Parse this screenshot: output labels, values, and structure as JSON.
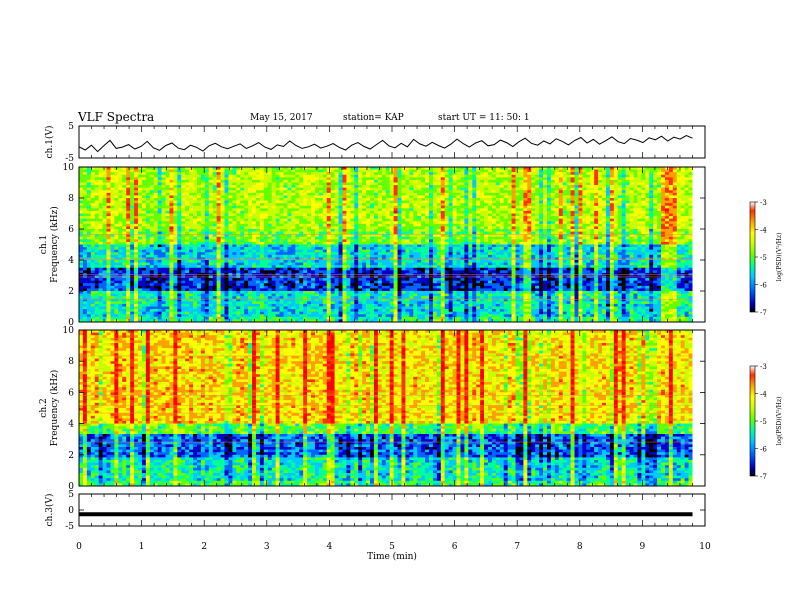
{
  "header": {
    "title": "VLF Spectra",
    "date": "May 15, 2017",
    "station": "station= KAP",
    "start": "start UT = 11: 50: 1"
  },
  "chart_data": [
    {
      "panel": "ch1-waveform",
      "type": "line",
      "ylabel": "ch.1(V)",
      "ylim": [
        -5,
        5
      ],
      "yticks": [
        "5",
        "-5"
      ],
      "xlim": [
        0,
        9.8
      ],
      "series": [
        {
          "values": [
            -1.5,
            -2.5,
            -1,
            -3,
            -1.2,
            0.5,
            -2,
            -1.6,
            -0.8,
            -2.2,
            -1.4,
            0.2,
            -1.8,
            -2.6,
            -1.1,
            -0.3,
            -1.9,
            -2.4,
            -1,
            -1.7,
            -2.8,
            -1.2,
            -0.4,
            -1.5,
            -2.1,
            -1.3,
            -0.6,
            -2,
            -1.2,
            -0.2,
            -1.6,
            -2.3,
            -0.9,
            -1.4,
            0.3,
            -1.1,
            -2,
            -1.5,
            -0.7,
            -1.9,
            -1.3,
            -0.5,
            -1.7,
            -2.5,
            -1,
            -0.2,
            -1.4,
            -2.2,
            -0.8,
            0.5,
            -1.2,
            -1.8,
            -0.4,
            -1.5,
            0.8,
            -0.6,
            -1.3,
            -0.1,
            -1.1,
            -1.9,
            -0.7,
            0.9,
            -0.5,
            -1.6,
            -0.3,
            0.4,
            -1.2,
            -0.8,
            0.6,
            -0.2,
            -1.4,
            0.1,
            1.2,
            -0.4,
            -1,
            0.3,
            -0.6,
            1,
            0.2,
            -0.9,
            0.5,
            1.4,
            -0.3,
            0.8,
            -0.7,
            0.4,
            1.6,
            0.1,
            -0.5,
            1.1,
            0.6,
            -0.2,
            1.3,
            0.7,
            1.8,
            0.3,
            1.5,
            0.9,
            2,
            1.2
          ]
        }
      ]
    },
    {
      "panel": "ch1-spectrogram",
      "type": "heatmap",
      "ylabel_1": "ch.1",
      "ylabel_2": "Frequency (kHz)",
      "ylim": [
        0,
        10
      ],
      "yticks": [
        "0",
        "2",
        "4",
        "6",
        "8",
        "10"
      ],
      "xlim": [
        0,
        9.8
      ],
      "band_profile": [
        {
          "f0": 0,
          "f1": 0.3,
          "level": -5.3
        },
        {
          "f0": 0.3,
          "f1": 1.2,
          "level": -5.6
        },
        {
          "f0": 1.2,
          "f1": 2.0,
          "level": -5.5
        },
        {
          "f0": 2.0,
          "f1": 3.5,
          "level": -6.3
        },
        {
          "f0": 3.5,
          "f1": 5.0,
          "level": -5.6
        },
        {
          "f0": 5.0,
          "f1": 6.0,
          "level": -4.9
        },
        {
          "f0": 6.0,
          "f1": 10.0,
          "level": -4.7
        }
      ],
      "colorbar": {
        "label": "log(PSD)(V²/Hz)",
        "range": [
          -7,
          -3
        ],
        "ticks": [
          "-3",
          "-4",
          "-5",
          "-6",
          "-7"
        ]
      }
    },
    {
      "panel": "ch2-spectrogram",
      "type": "heatmap",
      "ylabel_1": "ch.2",
      "ylabel_2": "Frequency (kHz)",
      "ylim": [
        0,
        10
      ],
      "yticks": [
        "0",
        "2",
        "4",
        "6",
        "8",
        "10"
      ],
      "xlim": [
        0,
        9.8
      ],
      "band_profile": [
        {
          "f0": 0,
          "f1": 0.3,
          "level": -5.2
        },
        {
          "f0": 0.3,
          "f1": 1.8,
          "level": -5.5
        },
        {
          "f0": 1.8,
          "f1": 3.3,
          "level": -6.1
        },
        {
          "f0": 3.3,
          "f1": 4.0,
          "level": -5.1
        },
        {
          "f0": 4.0,
          "f1": 10.0,
          "level": -4.2
        }
      ],
      "colorbar": {
        "label": "log(PSD)(V²/Hz)",
        "range": [
          -7,
          -3
        ],
        "ticks": [
          "-3",
          "-4",
          "-5",
          "-6",
          "-7"
        ]
      }
    },
    {
      "panel": "ch3-waveform",
      "type": "line",
      "ylabel": "ch.3(V)",
      "ylim": [
        -5,
        5
      ],
      "yticks": [
        "5",
        "0",
        "-5"
      ],
      "xlim": [
        0,
        9.8
      ],
      "series": [
        {
          "values": [
            -1.3,
            -1.3
          ]
        }
      ]
    }
  ],
  "xaxis": {
    "label": "Time (min)",
    "range": [
      0,
      10
    ],
    "ticks": [
      "0",
      "1",
      "2",
      "3",
      "4",
      "5",
      "6",
      "7",
      "8",
      "9",
      "10"
    ]
  },
  "colormap": [
    "#000000",
    "#0000c8",
    "#0064ff",
    "#00c8ff",
    "#00ff96",
    "#64ff00",
    "#c8ff00",
    "#ffff00",
    "#ffa000",
    "#ff3200",
    "#ff0000",
    "#ffffff"
  ]
}
